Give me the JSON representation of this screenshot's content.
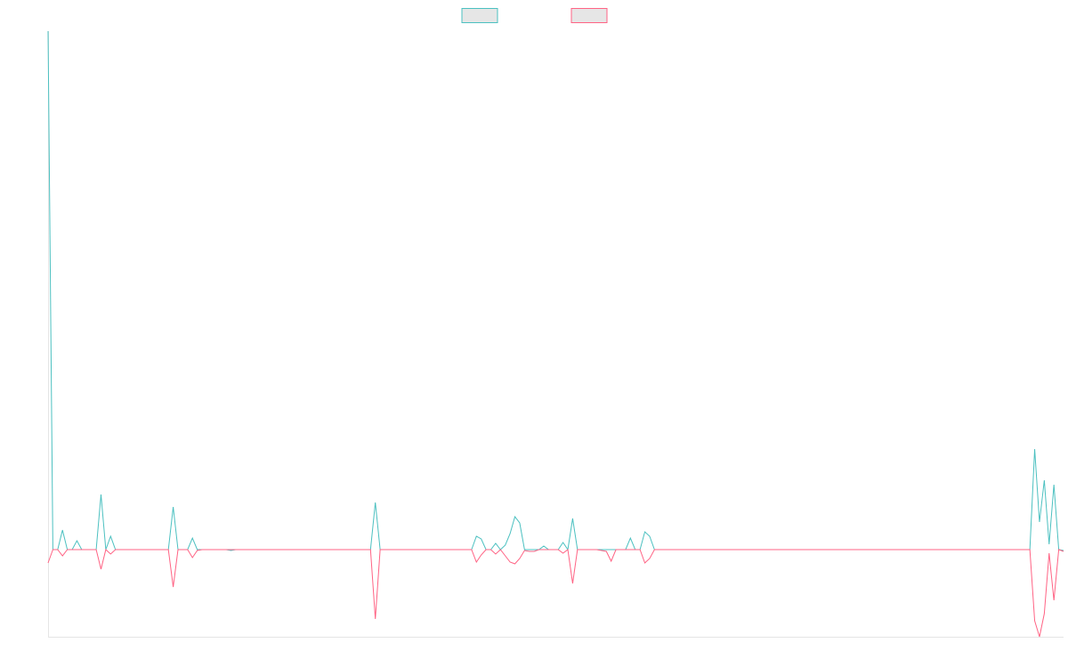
{
  "chart_data": {
    "type": "line",
    "legend": "top",
    "grid": false,
    "ylim": [
      -98,
      583
    ],
    "series": [
      {
        "color": "#4bc0c0",
        "values": [
          583,
          0,
          0,
          22,
          0,
          0,
          10,
          0,
          0,
          0,
          0,
          62,
          0,
          15,
          0,
          0,
          0,
          0,
          0,
          0,
          0,
          0,
          0,
          0,
          0,
          0,
          48,
          0,
          0,
          0,
          13,
          0,
          0,
          0,
          0,
          0,
          0,
          0,
          -1,
          0,
          0,
          0,
          0,
          0,
          0,
          0,
          0,
          0,
          0,
          0,
          0,
          0,
          0,
          0,
          0,
          0,
          0,
          0,
          0,
          0,
          0,
          0,
          0,
          0,
          0,
          0,
          0,
          0,
          53,
          0,
          0,
          0,
          0,
          0,
          0,
          0,
          0,
          0,
          0,
          0,
          0,
          0,
          0,
          0,
          0,
          0,
          0,
          0,
          0,
          15,
          12,
          0,
          0,
          7,
          0,
          5,
          18,
          37,
          30,
          0,
          0,
          0,
          0,
          4,
          0,
          0,
          0,
          8,
          0,
          35,
          0,
          0,
          0,
          0,
          0,
          0,
          0,
          0,
          0,
          0,
          0,
          13,
          0,
          0,
          20,
          15,
          0,
          0,
          0,
          0,
          0,
          0,
          0,
          0,
          0,
          0,
          0,
          0,
          0,
          0,
          0,
          0,
          0,
          0,
          0,
          0,
          0,
          0,
          0,
          0,
          0,
          0,
          0,
          0,
          0,
          0,
          0,
          0,
          0,
          0,
          0,
          0,
          0,
          0,
          0,
          0,
          0,
          0,
          0,
          0,
          0,
          0,
          0,
          0,
          0,
          0,
          0,
          0,
          0,
          0,
          0,
          0,
          0,
          0,
          0,
          0,
          0,
          0,
          0,
          0,
          0,
          0,
          0,
          0,
          0,
          0,
          0,
          0,
          0,
          0,
          0,
          0,
          0,
          0,
          0,
          113,
          31,
          78,
          6,
          73,
          0,
          -1
        ]
      },
      {
        "color": "#ff6384",
        "values": [
          -15,
          0,
          0,
          -7,
          0,
          0,
          0,
          0,
          0,
          0,
          0,
          -22,
          0,
          -5,
          0,
          0,
          0,
          0,
          0,
          0,
          0,
          0,
          0,
          0,
          0,
          0,
          -42,
          0,
          0,
          0,
          -9,
          -1,
          0,
          0,
          0,
          0,
          0,
          0,
          0,
          0,
          0,
          0,
          0,
          0,
          0,
          0,
          0,
          0,
          0,
          0,
          0,
          0,
          0,
          0,
          0,
          0,
          0,
          0,
          0,
          0,
          0,
          0,
          0,
          0,
          0,
          0,
          0,
          0,
          -78,
          0,
          0,
          0,
          0,
          0,
          0,
          0,
          0,
          0,
          0,
          0,
          0,
          0,
          0,
          0,
          0,
          0,
          0,
          0,
          0,
          -14,
          -6,
          0,
          0,
          -5,
          0,
          -7,
          -14,
          -16,
          -10,
          -1,
          -2,
          -2,
          0,
          0,
          0,
          0,
          0,
          -4,
          0,
          -38,
          0,
          0,
          0,
          0,
          0,
          -1,
          -2,
          -13,
          0,
          0,
          0,
          0,
          0,
          0,
          -15,
          -10,
          0,
          0,
          0,
          0,
          0,
          0,
          0,
          0,
          0,
          0,
          0,
          0,
          0,
          0,
          0,
          0,
          0,
          0,
          0,
          0,
          0,
          0,
          0,
          0,
          0,
          0,
          0,
          0,
          0,
          0,
          0,
          0,
          0,
          0,
          0,
          0,
          0,
          0,
          0,
          0,
          0,
          0,
          0,
          0,
          0,
          0,
          0,
          0,
          0,
          0,
          0,
          0,
          0,
          0,
          0,
          0,
          0,
          0,
          0,
          0,
          0,
          0,
          0,
          0,
          0,
          0,
          0,
          0,
          0,
          0,
          0,
          0,
          0,
          0,
          0,
          0,
          0,
          0,
          0,
          -80,
          -98,
          -72,
          -4,
          -57,
          0,
          -2
        ]
      }
    ]
  }
}
